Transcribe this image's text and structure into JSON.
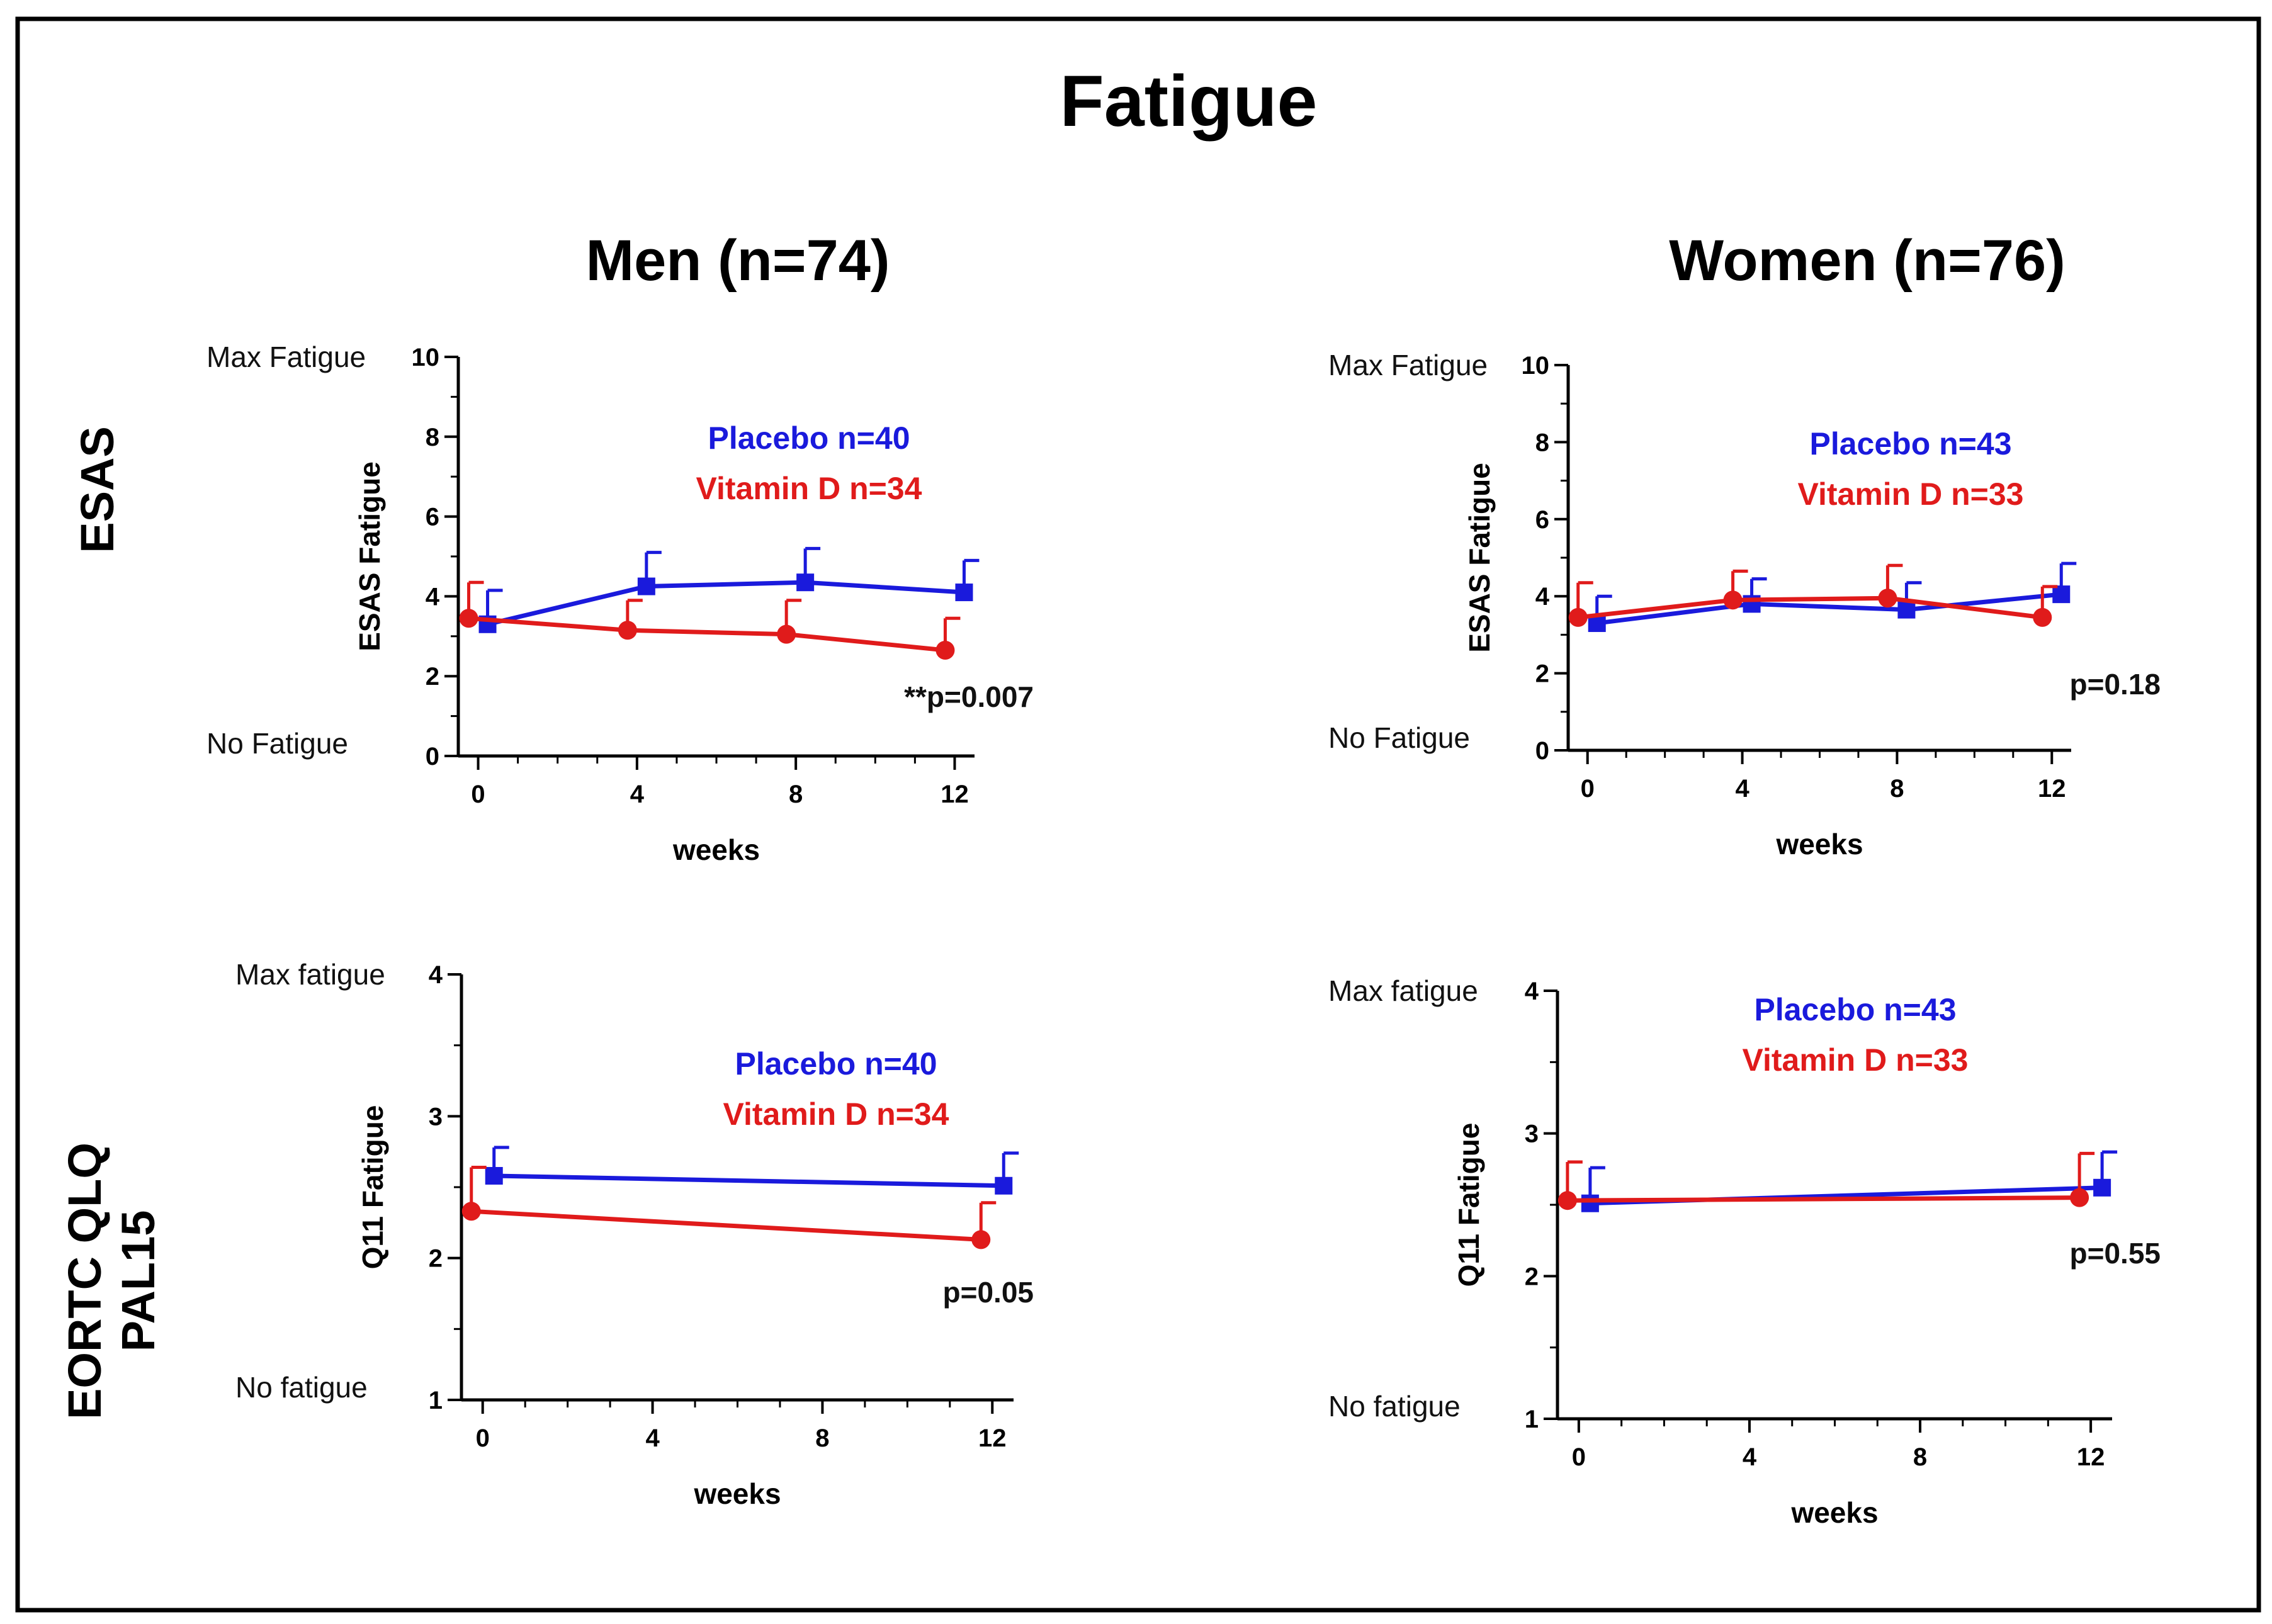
{
  "title": "Fatigue",
  "column_titles": [
    "Men (n=74)",
    "Women (n=76)"
  ],
  "row_labels": {
    "esas": "ESAS",
    "eortc_line1": "EORTC QLQ",
    "eortc_line2": "PAL15"
  },
  "colors": {
    "placebo": "#1a1adc",
    "vitamin_d": "#e01b1b",
    "axis": "#000000"
  },
  "chart_data": [
    {
      "type": "line",
      "panel": "Men ESAS",
      "xlabel": "weeks",
      "ylabel": "ESAS Fatigue",
      "x_ticks": [
        0,
        4,
        8,
        12
      ],
      "y_ticks": [
        0,
        2,
        4,
        6,
        8,
        10
      ],
      "xlim": [
        -0.5,
        12.5
      ],
      "ylim": [
        0,
        10
      ],
      "anchor_top": "Max Fatigue",
      "anchor_bottom": "No Fatigue",
      "legend": [
        "Placebo n=40",
        "Vitamin D n=34"
      ],
      "annotation": "**p=0.007",
      "series": [
        {
          "name": "Placebo n=40",
          "x": [
            0,
            4,
            8,
            12
          ],
          "y": [
            3.3,
            4.25,
            4.35,
            4.1
          ],
          "err": [
            0.85,
            0.85,
            0.85,
            0.8
          ]
        },
        {
          "name": "Vitamin D n=34",
          "x": [
            0,
            4,
            8,
            12
          ],
          "y": [
            3.45,
            3.15,
            3.05,
            2.65
          ],
          "err": [
            0.9,
            0.75,
            0.85,
            0.8
          ]
        }
      ]
    },
    {
      "type": "line",
      "panel": "Women ESAS",
      "xlabel": "weeks",
      "ylabel": "ESAS Fatigue",
      "x_ticks": [
        0,
        4,
        8,
        12
      ],
      "y_ticks": [
        0,
        2,
        4,
        6,
        8,
        10
      ],
      "xlim": [
        -0.5,
        12.5
      ],
      "ylim": [
        0,
        10
      ],
      "anchor_top": "Max Fatigue",
      "anchor_bottom": "No Fatigue",
      "legend": [
        "Placebo n=43",
        "Vitamin D n=33"
      ],
      "annotation": "p=0.18",
      "series": [
        {
          "name": "Placebo n=43",
          "x": [
            0,
            4,
            8,
            12
          ],
          "y": [
            3.3,
            3.8,
            3.65,
            4.05
          ],
          "err": [
            0.7,
            0.65,
            0.7,
            0.8
          ]
        },
        {
          "name": "Vitamin D n=33",
          "x": [
            0,
            4,
            8,
            12
          ],
          "y": [
            3.45,
            3.9,
            3.95,
            3.45
          ],
          "err": [
            0.9,
            0.75,
            0.85,
            0.8
          ]
        }
      ]
    },
    {
      "type": "line",
      "panel": "Men EORTC QLQ PAL15",
      "xlabel": "weeks",
      "ylabel": "Q11 Fatigue",
      "x_ticks": [
        0,
        4,
        8,
        12
      ],
      "y_ticks": [
        1,
        2,
        3,
        4
      ],
      "xlim": [
        -0.5,
        12.5
      ],
      "ylim": [
        1,
        4
      ],
      "anchor_top": "Max fatigue",
      "anchor_bottom": "No fatigue",
      "legend": [
        "Placebo n=40",
        "Vitamin D n=34"
      ],
      "annotation": "p=0.05",
      "series": [
        {
          "name": "Placebo n=40",
          "x": [
            0,
            12
          ],
          "y": [
            2.58,
            2.51
          ],
          "err": [
            0.2,
            0.23
          ]
        },
        {
          "name": "Vitamin D n=34",
          "x": [
            0,
            12
          ],
          "y": [
            2.33,
            2.13
          ],
          "err": [
            0.31,
            0.26
          ]
        }
      ]
    },
    {
      "type": "line",
      "panel": "Women EORTC QLQ PAL15",
      "xlabel": "weeks",
      "ylabel": "Q11 Fatigue",
      "x_ticks": [
        0,
        4,
        8,
        12
      ],
      "y_ticks": [
        1,
        2,
        3,
        4
      ],
      "xlim": [
        -0.5,
        12.5
      ],
      "ylim": [
        1,
        4
      ],
      "anchor_top": "Max fatigue",
      "anchor_bottom": "No fatigue",
      "legend": [
        "Placebo n=43",
        "Vitamin D n=33"
      ],
      "annotation": "p=0.55",
      "series": [
        {
          "name": "Placebo n=43",
          "x": [
            0,
            12
          ],
          "y": [
            2.51,
            2.62
          ],
          "err": [
            0.25,
            0.25
          ]
        },
        {
          "name": "Vitamin D n=33",
          "x": [
            0,
            12
          ],
          "y": [
            2.53,
            2.55
          ],
          "err": [
            0.27,
            0.31
          ]
        }
      ]
    }
  ]
}
